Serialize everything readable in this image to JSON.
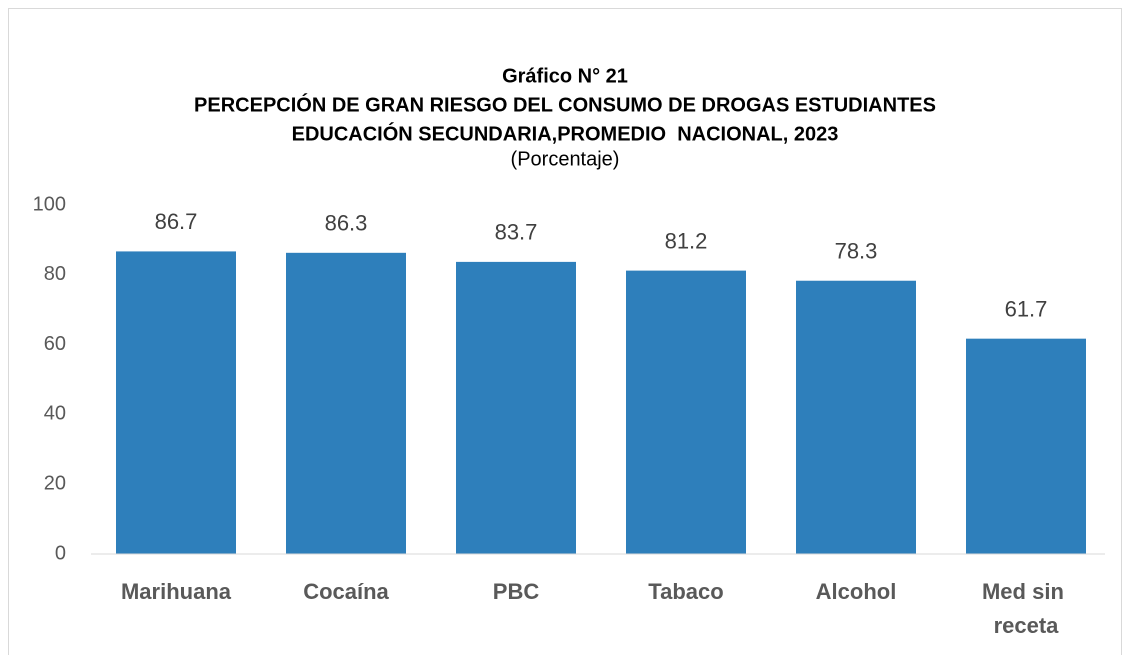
{
  "chart_data": {
    "type": "bar",
    "title": [
      "Gráfico N° 21",
      "PERCEPCIÓN DE GRAN RIESGO DEL CONSUMO DE DROGAS ESTUDIANTES",
      "EDUCACIÓN SECUNDARIA,PROMEDIO  NACIONAL, 2023"
    ],
    "subtitle": "(Porcentaje)",
    "categories": [
      "Marihuana",
      "Cocaína",
      "PBC",
      "Tabaco",
      "Alcohol",
      "Med sin receta"
    ],
    "values": [
      86.7,
      86.3,
      83.7,
      81.2,
      78.3,
      61.7
    ],
    "color": "#2e7fbb",
    "ylim": [
      0,
      100
    ],
    "yticks": [
      0,
      20,
      40,
      60,
      80,
      100
    ],
    "grid": false
  }
}
